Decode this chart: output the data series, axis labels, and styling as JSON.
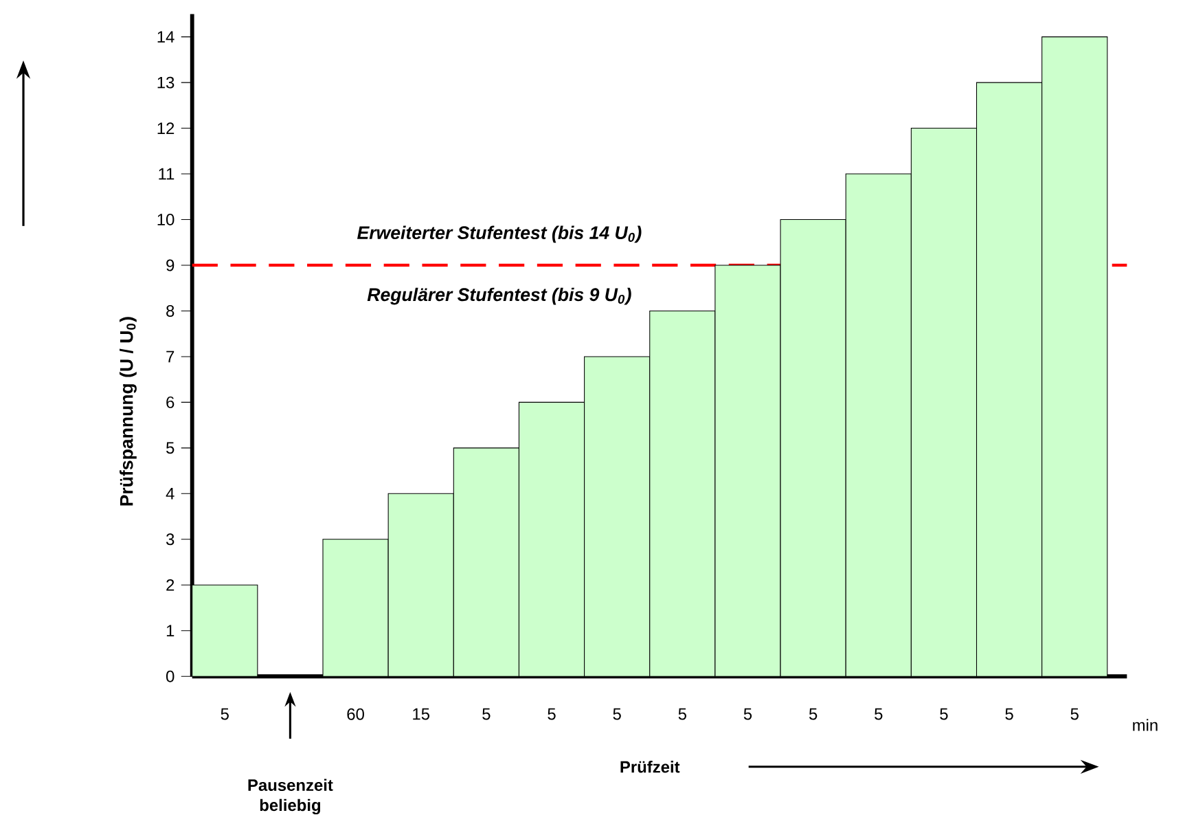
{
  "chart_data": {
    "type": "bar",
    "categories": [
      "5",
      null,
      "60",
      "15",
      "5",
      "5",
      "5",
      "5",
      "5",
      "5",
      "5",
      "5",
      "5",
      "5"
    ],
    "values": [
      2,
      null,
      3,
      4,
      5,
      6,
      7,
      8,
      9,
      10,
      11,
      12,
      13,
      14
    ],
    "color": "#ccffcc",
    "xlabel": "Prüfzeit",
    "ylabel": "Prüfspannung  (U / U$_{0}$)",
    "ylim": [
      0,
      14.5
    ],
    "yticks": [
      0,
      1,
      2,
      3,
      4,
      5,
      6,
      7,
      8,
      9,
      10,
      11,
      12,
      13,
      14
    ],
    "grid": false,
    "ref_lines": [
      {
        "axis": "y",
        "value": 9,
        "color": "#ff0000",
        "line_style": "dashed"
      }
    ],
    "annotations": [
      "Erweiterter Stufentest  (bis 14 U$_{0}$)",
      "Regulärer Stufentest  (bis 9 U$_{0}$)",
      "Pausenzeit beliebig",
      "min"
    ]
  }
}
